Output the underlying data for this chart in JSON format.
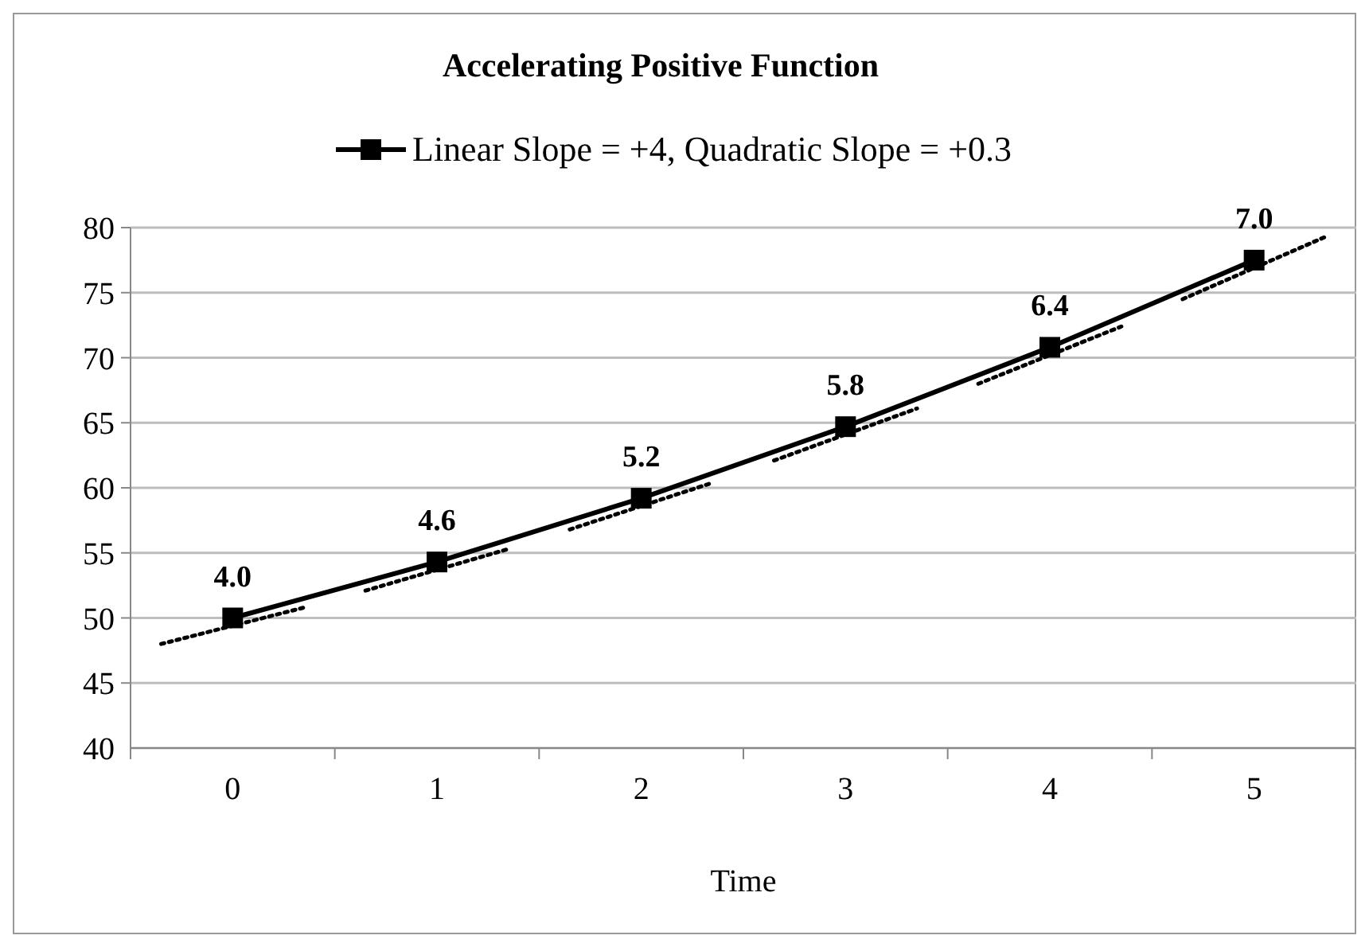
{
  "chart_data": {
    "type": "line",
    "title": "Accelerating Positive Function",
    "xlabel": "Time",
    "xlim": [
      -0.5,
      5.5
    ],
    "xticks": [
      0,
      1,
      2,
      3,
      4,
      5
    ],
    "ylim": [
      40,
      80
    ],
    "yticks": [
      40,
      45,
      50,
      55,
      60,
      65,
      70,
      75,
      80
    ],
    "grid": "y",
    "legend": "top",
    "marker": "square",
    "line_style": "solid",
    "annotations": [
      {
        "text": "4.0",
        "x": 0,
        "y": 50
      },
      {
        "text": "4.6",
        "x": 1,
        "y": 54.3
      },
      {
        "text": "5.2",
        "x": 2,
        "y": 59.2
      },
      {
        "text": "5.8",
        "x": 3,
        "y": 64.7
      },
      {
        "text": "6.4",
        "x": 4,
        "y": 70.8
      },
      {
        "text": "7.0",
        "x": 5,
        "y": 77.5
      }
    ],
    "series": [
      {
        "name": "Linear Slope = +4, Quadratic Slope = +0.3",
        "color": "#000000",
        "x": [
          0,
          1,
          2,
          3,
          4,
          5
        ],
        "values": [
          50,
          54.3,
          59.2,
          64.7,
          70.8,
          77.5
        ]
      },
      {
        "type": "line",
        "color": "#000000",
        "line_style": "dotted",
        "marker": "none",
        "x": [
          -0.35,
          0.35
        ],
        "values": [
          48.0,
          50.8
        ]
      },
      {
        "type": "line",
        "color": "#000000",
        "line_style": "dotted",
        "marker": "none",
        "x": [
          0.65,
          1.35
        ],
        "values": [
          52.1,
          55.3
        ]
      },
      {
        "type": "line",
        "color": "#000000",
        "line_style": "dotted",
        "marker": "none",
        "x": [
          1.65,
          2.35
        ],
        "values": [
          56.8,
          60.4
        ]
      },
      {
        "type": "line",
        "color": "#000000",
        "line_style": "dotted",
        "marker": "none",
        "x": [
          2.65,
          3.35
        ],
        "values": [
          62.1,
          66.1
        ]
      },
      {
        "type": "line",
        "color": "#000000",
        "line_style": "dotted",
        "marker": "none",
        "x": [
          3.65,
          4.35
        ],
        "values": [
          68.0,
          72.4
        ]
      },
      {
        "type": "line",
        "color": "#000000",
        "line_style": "dotted",
        "marker": "none",
        "x": [
          4.65,
          5.35
        ],
        "values": [
          74.5,
          79.3
        ]
      }
    ]
  }
}
